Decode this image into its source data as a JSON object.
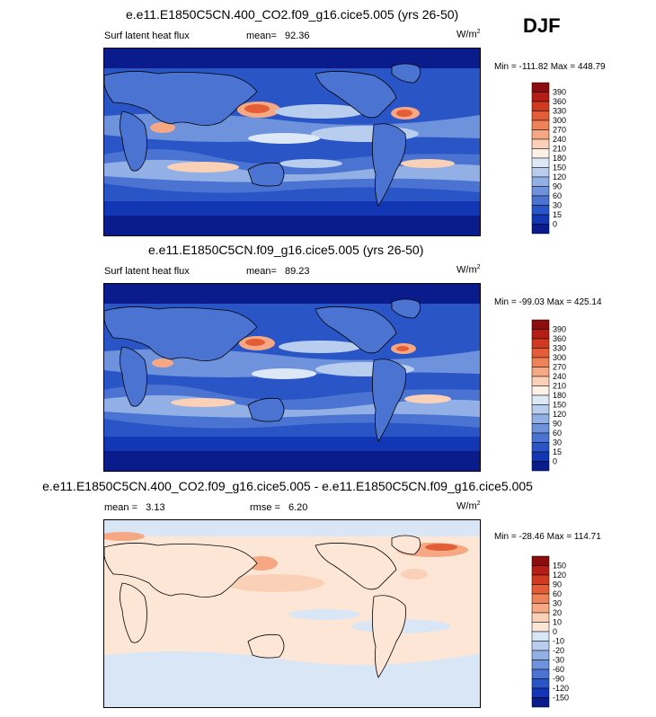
{
  "season": "DJF",
  "panels": [
    {
      "title": "e.e11.E1850C5CN.400_CO2.f09_g16.cice5.005 (yrs 26-50)",
      "left_text": "Surf latent heat flux",
      "mid_label": "mean=",
      "mid_value": "92.36",
      "units": "W/m",
      "units_sup": "2",
      "minmax": "Min = -111.82 Max = 448.79",
      "colorbar_labels": [
        "390",
        "360",
        "330",
        "300",
        "270",
        "240",
        "210",
        "180",
        "150",
        "120",
        "90",
        "60",
        "30",
        "15",
        "0"
      ]
    },
    {
      "title": "e.e11.E1850C5CN.f09_g16.cice5.005 (yrs 26-50)",
      "left_text": "Surf latent heat flux",
      "mid_label": "mean=",
      "mid_value": "89.23",
      "units": "W/m",
      "units_sup": "2",
      "minmax": "Min = -99.03 Max = 425.14",
      "colorbar_labels": [
        "390",
        "360",
        "330",
        "300",
        "270",
        "240",
        "210",
        "180",
        "150",
        "120",
        "90",
        "60",
        "30",
        "15",
        "0"
      ]
    },
    {
      "title": "e.e11.E1850C5CN.400_CO2.f09_g16.cice5.005 - e.e11.E1850C5CN.f09_g16.cice5.005",
      "left_text": "mean =   3.13",
      "mid_label": "rmse =",
      "mid_value": "6.20",
      "units": "W/m",
      "units_sup": "2",
      "minmax": "Min = -28.46 Max = 114.71",
      "colorbar_labels": [
        "150",
        "120",
        "90",
        "60",
        "30",
        "20",
        "10",
        "0",
        "-10",
        "-20",
        "-30",
        "-60",
        "-90",
        "-120",
        "-150"
      ]
    }
  ],
  "colors": {
    "abs_scale": [
      "#8c0d0d",
      "#b41e16",
      "#d03a20",
      "#e35d36",
      "#ee8258",
      "#f5a883",
      "#fad0b6",
      "#fdf0e6",
      "#dde8f6",
      "#b9cdef",
      "#92b0e6",
      "#6e92dc",
      "#4b74d2",
      "#2a55c6",
      "#1236b4",
      "#0a1c8c"
    ],
    "diff_scale": [
      "#8c0d0d",
      "#b41e16",
      "#d03a20",
      "#e35d36",
      "#ee8258",
      "#f5a883",
      "#fad0b6",
      "#fde6d6",
      "#d9e6f6",
      "#b9cdef",
      "#92b0e6",
      "#6e92dc",
      "#4b74d2",
      "#2a55c6",
      "#1236b4",
      "#0a1c8c"
    ]
  },
  "chart_data": [
    {
      "type": "heatmap",
      "title": "e.e11.E1850C5CN.400_CO2.f09_g16.cice5.005 (yrs 26-50)",
      "variable": "Surf latent heat flux",
      "units": "W/m2",
      "mean": 92.36,
      "min": -111.82,
      "max": 448.79,
      "levels": [
        0,
        15,
        30,
        60,
        90,
        120,
        150,
        180,
        210,
        240,
        270,
        300,
        330,
        360,
        390
      ]
    },
    {
      "type": "heatmap",
      "title": "e.e11.E1850C5CN.f09_g16.cice5.005 (yrs 26-50)",
      "variable": "Surf latent heat flux",
      "units": "W/m2",
      "mean": 89.23,
      "min": -99.03,
      "max": 425.14,
      "levels": [
        0,
        15,
        30,
        60,
        90,
        120,
        150,
        180,
        210,
        240,
        270,
        300,
        330,
        360,
        390
      ]
    },
    {
      "type": "heatmap",
      "title": "e.e11.E1850C5CN.400_CO2.f09_g16.cice5.005 - e.e11.E1850C5CN.f09_g16.cice5.005",
      "units": "W/m2",
      "mean": 3.13,
      "rmse": 6.2,
      "min": -28.46,
      "max": 114.71,
      "levels": [
        -150,
        -120,
        -90,
        -60,
        -30,
        -20,
        -10,
        0,
        10,
        20,
        30,
        60,
        90,
        120,
        150
      ]
    }
  ]
}
